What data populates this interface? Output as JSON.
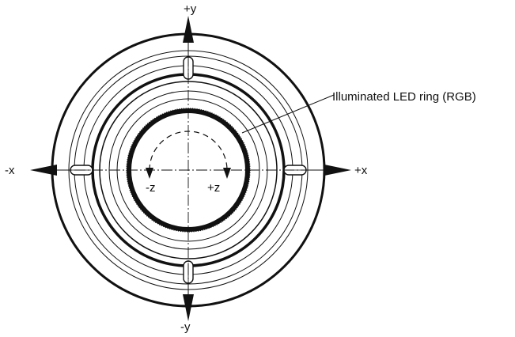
{
  "diagram": {
    "axes": {
      "pos_y": "+y",
      "neg_y": "-y",
      "pos_x": "+x",
      "neg_x": "-x",
      "pos_z": "+z",
      "neg_z": "-z"
    },
    "callout": {
      "label": "Illuminated LED ring (RGB)"
    },
    "colors": {
      "line": "#111111",
      "background": "#ffffff"
    }
  }
}
